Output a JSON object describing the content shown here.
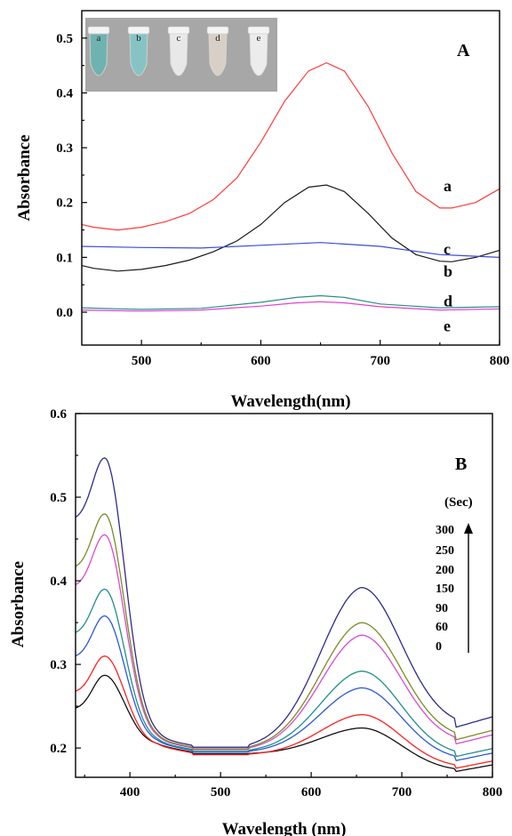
{
  "chart_data": [
    {
      "type": "line",
      "panel_label": "A",
      "xlabel": "Wavelength(nm)",
      "ylabel": "Absorbance",
      "xlim": [
        450,
        800
      ],
      "ylim": [
        -0.06,
        0.55
      ],
      "xticks": [
        500,
        600,
        700,
        800
      ],
      "yticks": [
        0.0,
        0.1,
        0.2,
        0.3,
        0.4,
        0.5
      ],
      "inset": {
        "type": "photo",
        "tube_labels": [
          "a",
          "b",
          "c",
          "d",
          "e"
        ],
        "tube_colors": [
          "#6fb3b0",
          "#86c4c4",
          "#e8e8e8",
          "#d8cfc6",
          "#ececec"
        ]
      },
      "series": [
        {
          "name": "a",
          "color": "#ff3a3a",
          "x": [
            450,
            460,
            480,
            500,
            520,
            540,
            560,
            580,
            600,
            620,
            640,
            655,
            670,
            690,
            710,
            730,
            750,
            760,
            780,
            800
          ],
          "y": [
            0.16,
            0.155,
            0.15,
            0.155,
            0.165,
            0.18,
            0.205,
            0.245,
            0.31,
            0.385,
            0.44,
            0.455,
            0.44,
            0.375,
            0.29,
            0.22,
            0.19,
            0.19,
            0.2,
            0.225
          ]
        },
        {
          "name": "b",
          "color": "#1a1a1a",
          "x": [
            450,
            460,
            480,
            500,
            520,
            540,
            560,
            580,
            600,
            620,
            640,
            655,
            670,
            690,
            710,
            730,
            750,
            760,
            780,
            800
          ],
          "y": [
            0.085,
            0.08,
            0.075,
            0.078,
            0.085,
            0.095,
            0.11,
            0.13,
            0.16,
            0.2,
            0.228,
            0.232,
            0.22,
            0.18,
            0.135,
            0.105,
            0.093,
            0.092,
            0.1,
            0.113
          ]
        },
        {
          "name": "c",
          "color": "#3a4bd6",
          "x": [
            450,
            500,
            550,
            600,
            650,
            700,
            750,
            800
          ],
          "y": [
            0.12,
            0.118,
            0.117,
            0.122,
            0.127,
            0.12,
            0.105,
            0.1
          ]
        },
        {
          "name": "d",
          "color": "#2a8f86",
          "x": [
            450,
            500,
            550,
            600,
            630,
            650,
            670,
            700,
            750,
            800
          ],
          "y": [
            0.008,
            0.005,
            0.007,
            0.018,
            0.027,
            0.03,
            0.027,
            0.015,
            0.008,
            0.01
          ]
        },
        {
          "name": "e",
          "color": "#e040d0",
          "x": [
            450,
            500,
            550,
            600,
            630,
            650,
            670,
            700,
            750,
            800
          ],
          "y": [
            0.004,
            0.002,
            0.004,
            0.011,
            0.017,
            0.019,
            0.017,
            0.01,
            0.004,
            0.006
          ]
        }
      ],
      "labels": [
        {
          "text": "a",
          "x": 765,
          "y": 0.23
        },
        {
          "text": "c",
          "x": 765,
          "y": 0.115
        },
        {
          "text": "b",
          "x": 765,
          "y": 0.075
        },
        {
          "text": "d",
          "x": 765,
          "y": 0.02
        },
        {
          "text": "e",
          "x": 765,
          "y": -0.025
        }
      ]
    },
    {
      "type": "line",
      "panel_label": "B",
      "xlabel": "Wavelength (nm)",
      "ylabel": "Absorbance",
      "xlim": [
        340,
        800
      ],
      "ylim": [
        0.165,
        0.6
      ],
      "xticks": [
        400,
        500,
        600,
        700,
        800
      ],
      "yticks": [
        0.2,
        0.3,
        0.4,
        0.5,
        0.6
      ],
      "time_unit": "(Sec)",
      "time_labels": [
        "300",
        "250",
        "200",
        "150",
        "90",
        "60",
        "0"
      ],
      "series": [
        {
          "name": "0",
          "color": "#111111",
          "peak1": 0.287,
          "valley": 0.193,
          "peak2": 0.224,
          "tail": 0.172
        },
        {
          "name": "60",
          "color": "#ff2020",
          "peak1": 0.31,
          "valley": 0.192,
          "peak2": 0.24,
          "tail": 0.176
        },
        {
          "name": "90",
          "color": "#2a58d8",
          "peak1": 0.358,
          "valley": 0.195,
          "peak2": 0.272,
          "tail": 0.185
        },
        {
          "name": "150",
          "color": "#1f8f8a",
          "peak1": 0.39,
          "valley": 0.196,
          "peak2": 0.292,
          "tail": 0.19
        },
        {
          "name": "200",
          "color": "#d84ad0",
          "peak1": 0.455,
          "valley": 0.198,
          "peak2": 0.335,
          "tail": 0.205
        },
        {
          "name": "250",
          "color": "#7c8c22",
          "peak1": 0.48,
          "valley": 0.199,
          "peak2": 0.35,
          "tail": 0.21
        },
        {
          "name": "300",
          "color": "#2f2a8a",
          "peak1": 0.547,
          "valley": 0.201,
          "peak2": 0.392,
          "tail": 0.225
        }
      ]
    }
  ]
}
